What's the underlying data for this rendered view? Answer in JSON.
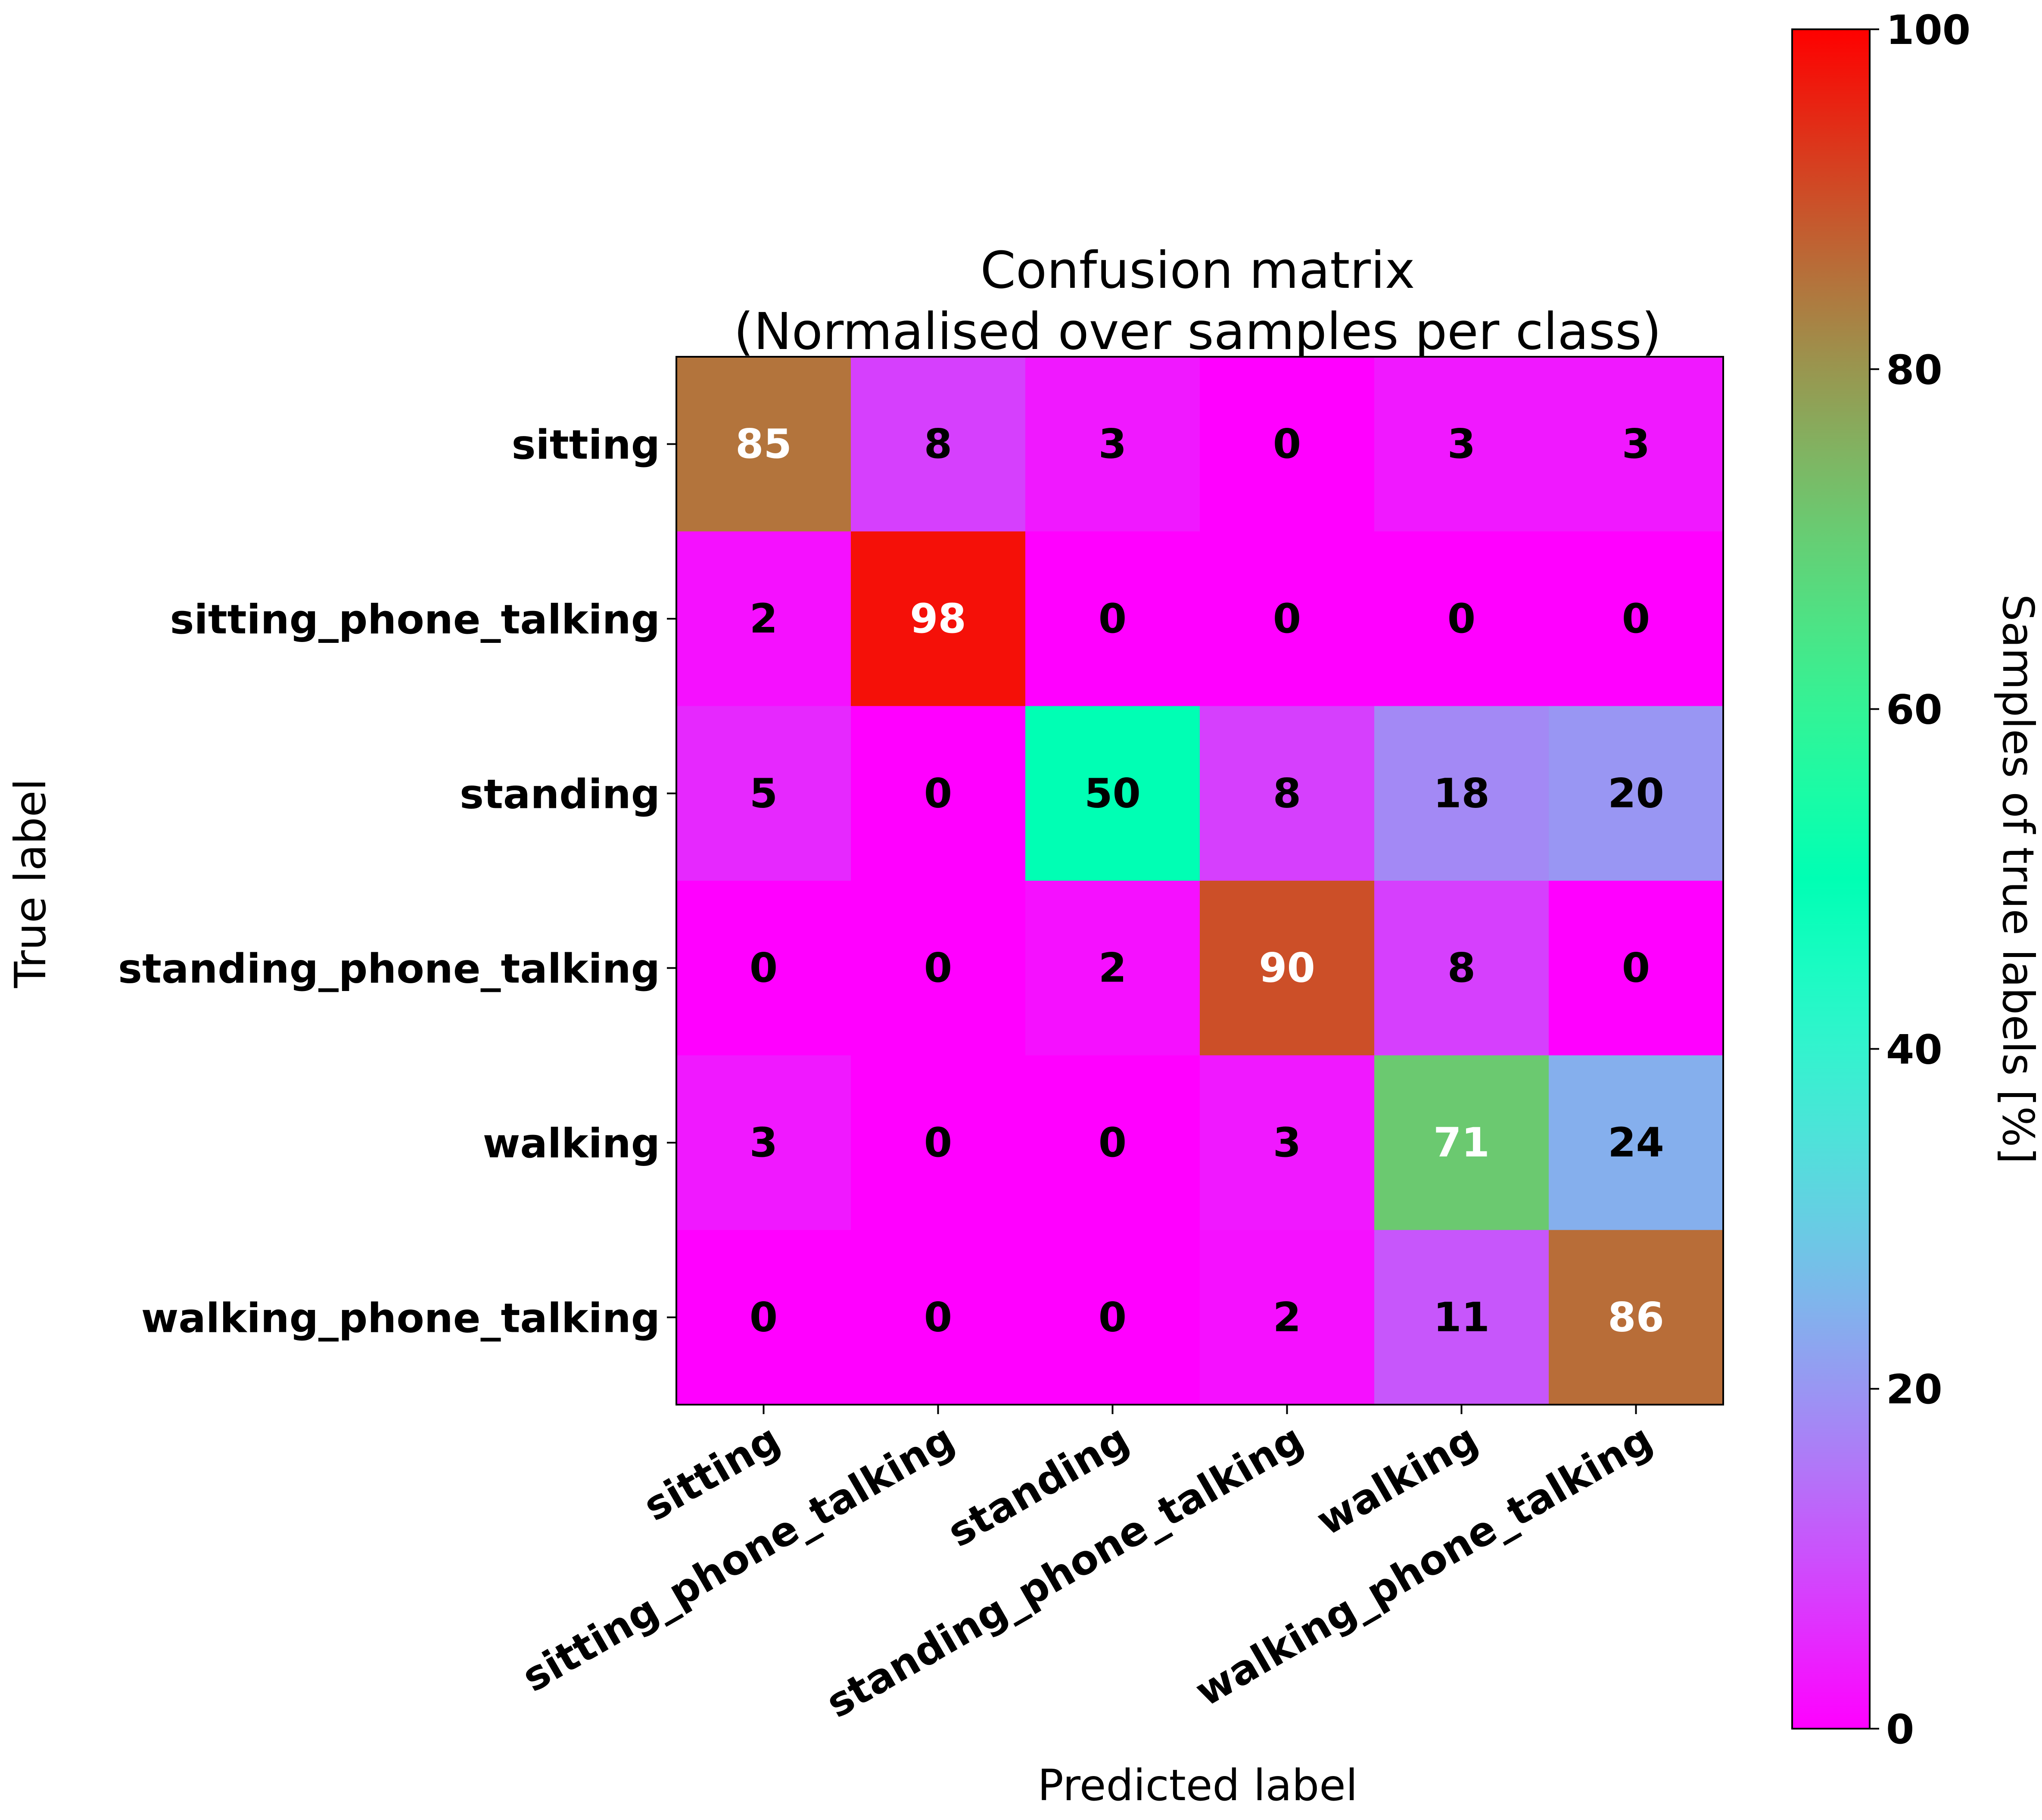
{
  "chart_data": {
    "type": "heatmap",
    "title": "Confusion matrix\n(Normalised over samples per class)",
    "xlabel": "Predicted label",
    "ylabel": "True label",
    "x_categories": [
      "sitting",
      "sitting_phone_talking",
      "standing",
      "standing_phone_talking",
      "walking",
      "walking_phone_talking"
    ],
    "y_categories": [
      "sitting",
      "sitting_phone_talking",
      "standing",
      "standing_phone_talking",
      "walking",
      "walking_phone_talking"
    ],
    "values": [
      [
        85,
        8,
        3,
        0,
        3,
        3
      ],
      [
        2,
        98,
        0,
        0,
        0,
        0
      ],
      [
        5,
        0,
        50,
        8,
        18,
        20
      ],
      [
        0,
        0,
        2,
        90,
        8,
        0
      ],
      [
        3,
        0,
        0,
        3,
        71,
        24
      ],
      [
        0,
        0,
        0,
        2,
        11,
        86
      ]
    ],
    "colormap": "rainbow",
    "colorbar": {
      "label": "Samples of true labels [%]",
      "range": [
        0,
        100
      ],
      "ticks": [
        0,
        20,
        40,
        60,
        80,
        100
      ]
    },
    "text_color_threshold": 50,
    "text_colors": {
      "light": "#ffffff",
      "dark": "#000000"
    },
    "grid": false
  }
}
